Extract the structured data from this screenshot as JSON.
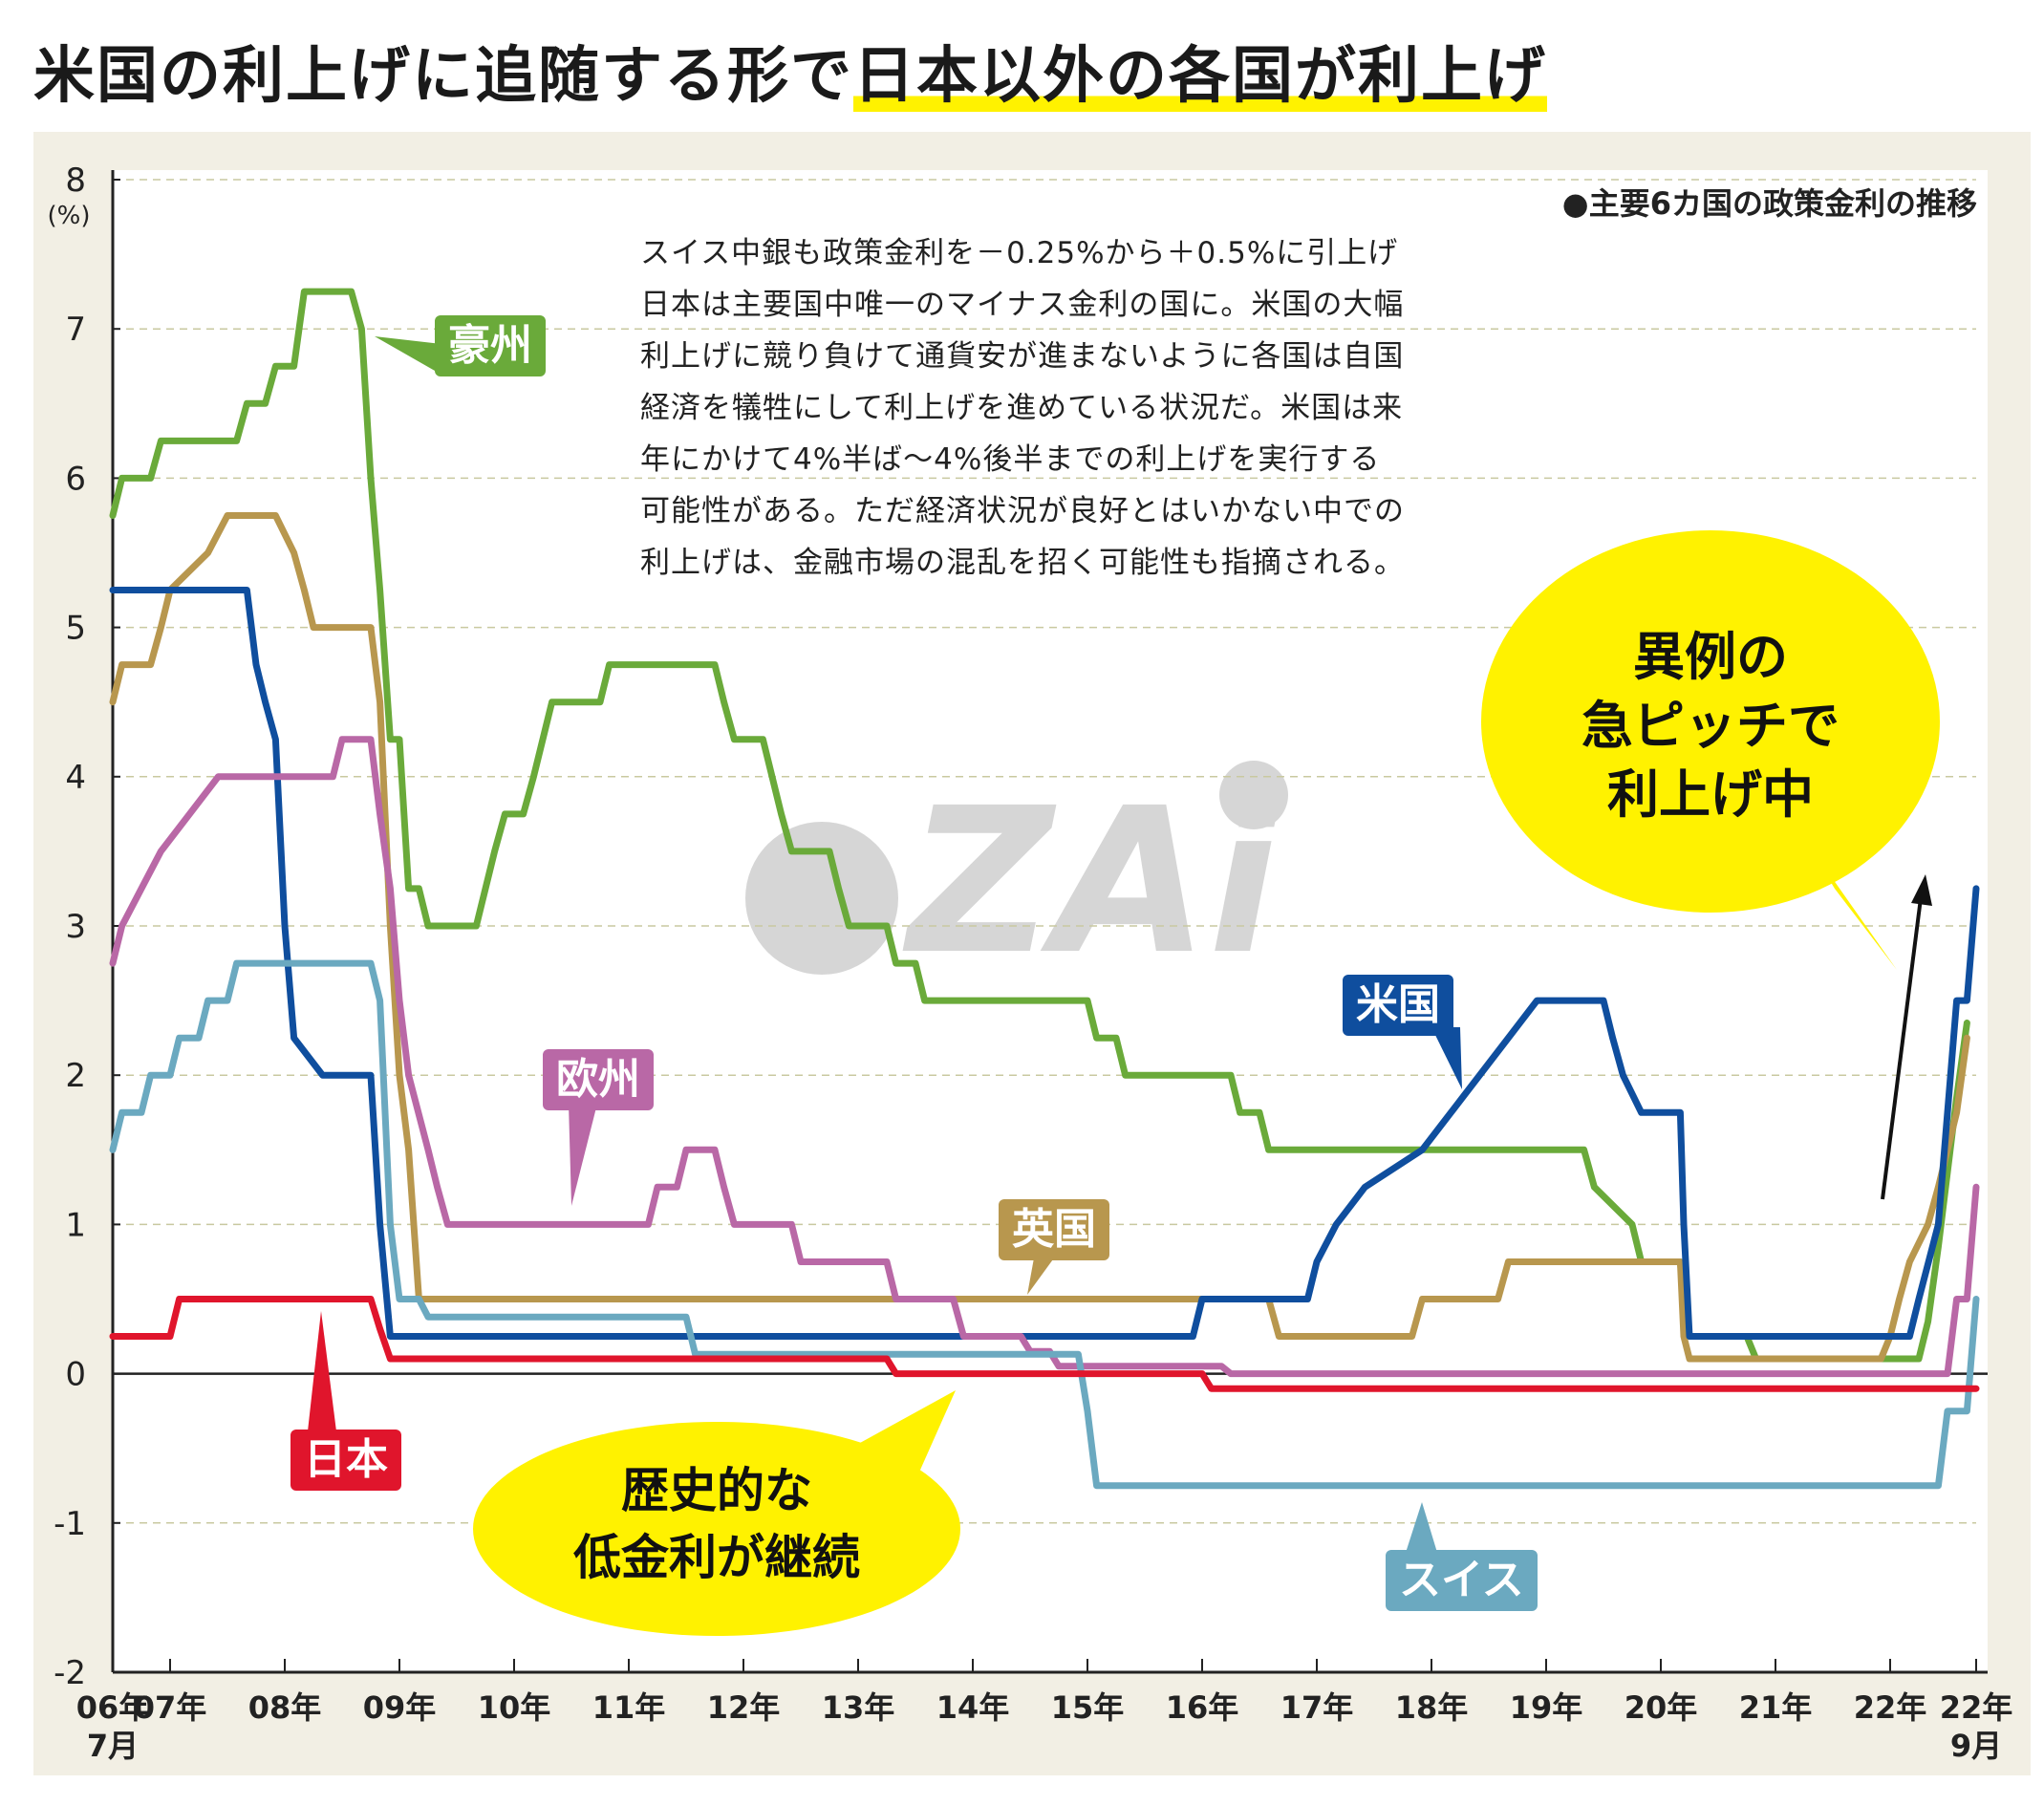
{
  "title_part1": "米国の利上げに追随する形で",
  "title_part2": "日本以外の各国が利上げ",
  "subtitle": "●主要6カ国の政策金利の推移",
  "note_lines": [
    "スイス中銀も政策金利を－0.25%から＋0.5%に引上げ",
    "日本は主要国中唯一のマイナス金利の国に。米国の大幅",
    "利上げに競り負けて通貨安が進まないように各国は自国",
    "経済を犠牲にして利上げを進めている状況だ。米国は来",
    "年にかけて4%半ば～4%後半までの利上げを実行する",
    "可能性がある。ただ経済状況が良好とはいかない中での",
    "利上げは、金融市場の混乱を招く可能性も指摘される。"
  ],
  "bubble_right": [
    "異例の",
    "急ピッチで",
    "利上げ中"
  ],
  "bubble_left": [
    "歴史的な",
    "低金利が継続"
  ],
  "watermark": "ZAi",
  "colors": {
    "australia": "#6aaa3a",
    "uk": "#b8974e",
    "us": "#0f4e9e",
    "eu": "#b968a6",
    "switzerland": "#6ba9c0",
    "japan": "#e0152c",
    "highlight": "#fff200"
  },
  "chart_data": {
    "type": "line",
    "title": "主要6カ国の政策金利の推移",
    "y_unit": "(%)",
    "ylim": [
      -2,
      8
    ],
    "yticks": [
      -2,
      -1,
      0,
      1,
      2,
      3,
      4,
      5,
      6,
      7,
      8
    ],
    "xlim": [
      2006.5,
      2022.75
    ],
    "xticks": [
      {
        "x": 2006.5,
        "label": "06年",
        "sub": "7月"
      },
      {
        "x": 2007,
        "label": "07年"
      },
      {
        "x": 2008,
        "label": "08年"
      },
      {
        "x": 2009,
        "label": "09年"
      },
      {
        "x": 2010,
        "label": "10年"
      },
      {
        "x": 2011,
        "label": "11年"
      },
      {
        "x": 2012,
        "label": "12年"
      },
      {
        "x": 2013,
        "label": "13年"
      },
      {
        "x": 2014,
        "label": "14年"
      },
      {
        "x": 2015,
        "label": "15年"
      },
      {
        "x": 2016,
        "label": "16年"
      },
      {
        "x": 2017,
        "label": "17年"
      },
      {
        "x": 2018,
        "label": "18年"
      },
      {
        "x": 2019,
        "label": "19年"
      },
      {
        "x": 2020,
        "label": "20年"
      },
      {
        "x": 2021,
        "label": "21年"
      },
      {
        "x": 2022,
        "label": "22年"
      },
      {
        "x": 2022.75,
        "label": "22年",
        "sub": "9月"
      }
    ],
    "grid": "dashed horizontal",
    "series": [
      {
        "name": "豪州",
        "key": "australia",
        "points": [
          [
            2006.5,
            5.75
          ],
          [
            2006.58,
            6.0
          ],
          [
            2006.83,
            6.0
          ],
          [
            2006.92,
            6.25
          ],
          [
            2007.58,
            6.25
          ],
          [
            2007.67,
            6.5
          ],
          [
            2007.83,
            6.5
          ],
          [
            2007.92,
            6.75
          ],
          [
            2008.08,
            6.75
          ],
          [
            2008.17,
            7.25
          ],
          [
            2008.58,
            7.25
          ],
          [
            2008.67,
            7.0
          ],
          [
            2008.75,
            6.0
          ],
          [
            2008.83,
            5.25
          ],
          [
            2008.92,
            4.25
          ],
          [
            2009.0,
            4.25
          ],
          [
            2009.08,
            3.25
          ],
          [
            2009.17,
            3.25
          ],
          [
            2009.25,
            3.0
          ],
          [
            2009.67,
            3.0
          ],
          [
            2009.83,
            3.5
          ],
          [
            2009.92,
            3.75
          ],
          [
            2010.08,
            3.75
          ],
          [
            2010.17,
            4.0
          ],
          [
            2010.33,
            4.5
          ],
          [
            2010.75,
            4.5
          ],
          [
            2010.83,
            4.75
          ],
          [
            2011.75,
            4.75
          ],
          [
            2011.83,
            4.5
          ],
          [
            2011.92,
            4.25
          ],
          [
            2012.17,
            4.25
          ],
          [
            2012.33,
            3.75
          ],
          [
            2012.42,
            3.5
          ],
          [
            2012.75,
            3.5
          ],
          [
            2012.83,
            3.25
          ],
          [
            2012.92,
            3.0
          ],
          [
            2013.25,
            3.0
          ],
          [
            2013.33,
            2.75
          ],
          [
            2013.5,
            2.75
          ],
          [
            2013.58,
            2.5
          ],
          [
            2015.0,
            2.5
          ],
          [
            2015.08,
            2.25
          ],
          [
            2015.25,
            2.25
          ],
          [
            2015.33,
            2.0
          ],
          [
            2016.25,
            2.0
          ],
          [
            2016.33,
            1.75
          ],
          [
            2016.5,
            1.75
          ],
          [
            2016.58,
            1.5
          ],
          [
            2019.33,
            1.5
          ],
          [
            2019.42,
            1.25
          ],
          [
            2019.75,
            1.0
          ],
          [
            2019.83,
            0.75
          ],
          [
            2020.17,
            0.75
          ],
          [
            2020.2,
            0.5
          ],
          [
            2020.25,
            0.25
          ],
          [
            2020.75,
            0.25
          ],
          [
            2020.83,
            0.1
          ],
          [
            2022.25,
            0.1
          ],
          [
            2022.33,
            0.35
          ],
          [
            2022.42,
            0.85
          ],
          [
            2022.5,
            1.35
          ],
          [
            2022.58,
            1.85
          ],
          [
            2022.67,
            2.35
          ]
        ]
      },
      {
        "name": "英国",
        "key": "uk",
        "points": [
          [
            2006.5,
            4.5
          ],
          [
            2006.58,
            4.75
          ],
          [
            2006.83,
            4.75
          ],
          [
            2006.92,
            5.0
          ],
          [
            2007.0,
            5.25
          ],
          [
            2007.33,
            5.5
          ],
          [
            2007.5,
            5.75
          ],
          [
            2007.92,
            5.75
          ],
          [
            2008.08,
            5.5
          ],
          [
            2008.17,
            5.25
          ],
          [
            2008.25,
            5.0
          ],
          [
            2008.75,
            5.0
          ],
          [
            2008.83,
            4.5
          ],
          [
            2008.92,
            3.0
          ],
          [
            2009.0,
            2.0
          ],
          [
            2009.08,
            1.5
          ],
          [
            2009.17,
            0.5
          ],
          [
            2016.58,
            0.5
          ],
          [
            2016.67,
            0.25
          ],
          [
            2017.83,
            0.25
          ],
          [
            2017.92,
            0.5
          ],
          [
            2018.58,
            0.5
          ],
          [
            2018.67,
            0.75
          ],
          [
            2020.17,
            0.75
          ],
          [
            2020.2,
            0.25
          ],
          [
            2020.25,
            0.1
          ],
          [
            2021.92,
            0.1
          ],
          [
            2022.0,
            0.25
          ],
          [
            2022.08,
            0.5
          ],
          [
            2022.17,
            0.75
          ],
          [
            2022.33,
            1.0
          ],
          [
            2022.42,
            1.25
          ],
          [
            2022.58,
            1.75
          ],
          [
            2022.67,
            2.25
          ]
        ]
      },
      {
        "name": "米国",
        "key": "us",
        "points": [
          [
            2006.5,
            5.25
          ],
          [
            2007.67,
            5.25
          ],
          [
            2007.75,
            4.75
          ],
          [
            2007.83,
            4.5
          ],
          [
            2007.92,
            4.25
          ],
          [
            2008.0,
            3.0
          ],
          [
            2008.08,
            2.25
          ],
          [
            2008.33,
            2.0
          ],
          [
            2008.75,
            2.0
          ],
          [
            2008.83,
            1.0
          ],
          [
            2008.92,
            0.25
          ],
          [
            2015.92,
            0.25
          ],
          [
            2016.0,
            0.5
          ],
          [
            2016.92,
            0.5
          ],
          [
            2017.0,
            0.75
          ],
          [
            2017.17,
            1.0
          ],
          [
            2017.42,
            1.25
          ],
          [
            2017.92,
            1.5
          ],
          [
            2018.17,
            1.75
          ],
          [
            2018.42,
            2.0
          ],
          [
            2018.67,
            2.25
          ],
          [
            2018.92,
            2.5
          ],
          [
            2019.5,
            2.5
          ],
          [
            2019.58,
            2.25
          ],
          [
            2019.67,
            2.0
          ],
          [
            2019.83,
            1.75
          ],
          [
            2020.17,
            1.75
          ],
          [
            2020.2,
            1.0
          ],
          [
            2020.25,
            0.25
          ],
          [
            2022.17,
            0.25
          ],
          [
            2022.25,
            0.5
          ],
          [
            2022.42,
            1.0
          ],
          [
            2022.5,
            1.75
          ],
          [
            2022.58,
            2.5
          ],
          [
            2022.67,
            2.5
          ],
          [
            2022.75,
            3.25
          ]
        ]
      },
      {
        "name": "欧州",
        "key": "eu",
        "points": [
          [
            2006.5,
            2.75
          ],
          [
            2006.58,
            3.0
          ],
          [
            2006.75,
            3.25
          ],
          [
            2006.92,
            3.5
          ],
          [
            2007.17,
            3.75
          ],
          [
            2007.42,
            4.0
          ],
          [
            2008.42,
            4.0
          ],
          [
            2008.5,
            4.25
          ],
          [
            2008.75,
            4.25
          ],
          [
            2008.83,
            3.75
          ],
          [
            2008.92,
            3.25
          ],
          [
            2009.0,
            2.5
          ],
          [
            2009.08,
            2.0
          ],
          [
            2009.25,
            1.5
          ],
          [
            2009.33,
            1.25
          ],
          [
            2009.42,
            1.0
          ],
          [
            2011.17,
            1.0
          ],
          [
            2011.25,
            1.25
          ],
          [
            2011.42,
            1.25
          ],
          [
            2011.5,
            1.5
          ],
          [
            2011.75,
            1.5
          ],
          [
            2011.83,
            1.25
          ],
          [
            2011.92,
            1.0
          ],
          [
            2012.42,
            1.0
          ],
          [
            2012.5,
            0.75
          ],
          [
            2013.25,
            0.75
          ],
          [
            2013.33,
            0.5
          ],
          [
            2013.83,
            0.5
          ],
          [
            2013.92,
            0.25
          ],
          [
            2014.42,
            0.25
          ],
          [
            2014.5,
            0.15
          ],
          [
            2014.67,
            0.15
          ],
          [
            2014.75,
            0.05
          ],
          [
            2016.17,
            0.05
          ],
          [
            2016.25,
            0.0
          ],
          [
            2022.5,
            0.0
          ],
          [
            2022.58,
            0.5
          ],
          [
            2022.67,
            0.5
          ],
          [
            2022.75,
            1.25
          ]
        ]
      },
      {
        "name": "スイス",
        "key": "switzerland",
        "points": [
          [
            2006.5,
            1.5
          ],
          [
            2006.58,
            1.75
          ],
          [
            2006.75,
            1.75
          ],
          [
            2006.83,
            2.0
          ],
          [
            2007.0,
            2.0
          ],
          [
            2007.08,
            2.25
          ],
          [
            2007.25,
            2.25
          ],
          [
            2007.33,
            2.5
          ],
          [
            2007.5,
            2.5
          ],
          [
            2007.58,
            2.75
          ],
          [
            2008.75,
            2.75
          ],
          [
            2008.83,
            2.5
          ],
          [
            2008.92,
            1.0
          ],
          [
            2009.0,
            0.5
          ],
          [
            2009.17,
            0.5
          ],
          [
            2009.25,
            0.38
          ],
          [
            2011.5,
            0.38
          ],
          [
            2011.58,
            0.13
          ],
          [
            2014.92,
            0.13
          ],
          [
            2015.0,
            -0.25
          ],
          [
            2015.08,
            -0.75
          ],
          [
            2022.42,
            -0.75
          ],
          [
            2022.5,
            -0.25
          ],
          [
            2022.67,
            -0.25
          ],
          [
            2022.75,
            0.5
          ]
        ]
      },
      {
        "name": "日本",
        "key": "japan",
        "points": [
          [
            2006.5,
            0.25
          ],
          [
            2007.0,
            0.25
          ],
          [
            2007.08,
            0.5
          ],
          [
            2008.75,
            0.5
          ],
          [
            2008.83,
            0.3
          ],
          [
            2008.92,
            0.1
          ],
          [
            2013.25,
            0.1
          ],
          [
            2013.33,
            0.0
          ],
          [
            2016.0,
            0.0
          ],
          [
            2016.08,
            -0.1
          ],
          [
            2022.75,
            -0.1
          ]
        ]
      }
    ]
  }
}
